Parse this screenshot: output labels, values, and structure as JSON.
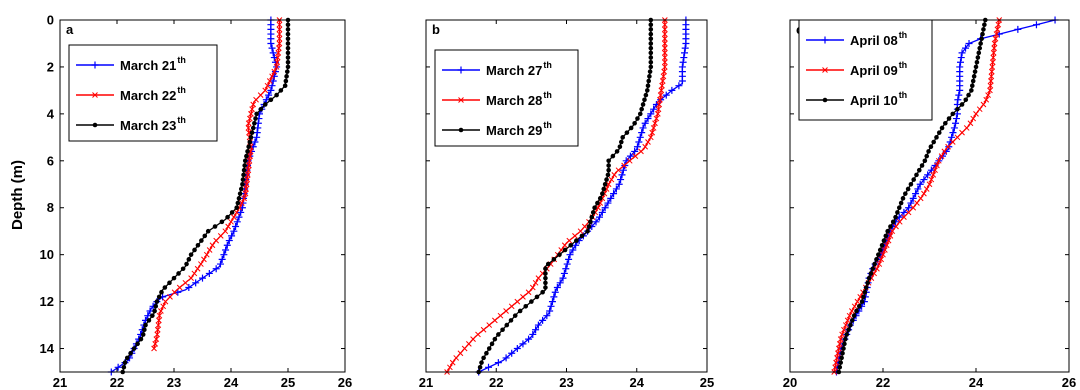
{
  "chart_data": [
    {
      "type": "line",
      "panel_label": "a",
      "xlabel": "",
      "ylabel": "Depth (m)",
      "xlim": [
        21,
        26
      ],
      "ylim": [
        0,
        15
      ],
      "y_reversed": true,
      "xticks": [
        "21",
        "22",
        "23",
        "24",
        "25",
        "26"
      ],
      "yticks": [
        "0",
        "2",
        "4",
        "6",
        "8",
        "10",
        "12",
        "14"
      ],
      "legend": "top-left",
      "series": [
        {
          "name": "March 21",
          "name_sup": "th",
          "color": "#0000ff",
          "marker": "plus",
          "points": [
            [
              24.7,
              0
            ],
            [
              24.7,
              1
            ],
            [
              24.8,
              2
            ],
            [
              24.7,
              3
            ],
            [
              24.6,
              3.5
            ],
            [
              24.5,
              4
            ],
            [
              24.45,
              5
            ],
            [
              24.3,
              6
            ],
            [
              24.25,
              7
            ],
            [
              24.2,
              8
            ],
            [
              24.05,
              9
            ],
            [
              23.95,
              9.5
            ],
            [
              23.8,
              10.5
            ],
            [
              23.5,
              11
            ],
            [
              23.2,
              11.5
            ],
            [
              22.8,
              11.8
            ],
            [
              22.7,
              12
            ],
            [
              22.6,
              12.3
            ],
            [
              22.5,
              12.8
            ],
            [
              22.4,
              13.5
            ],
            [
              22.3,
              14
            ],
            [
              22.2,
              14.5
            ],
            [
              21.9,
              15
            ]
          ]
        },
        {
          "name": "March 22",
          "name_sup": "th",
          "color": "#ff0000",
          "marker": "x",
          "points": [
            [
              24.85,
              0
            ],
            [
              24.85,
              1
            ],
            [
              24.8,
              2
            ],
            [
              24.6,
              3
            ],
            [
              24.4,
              3.5
            ],
            [
              24.35,
              4
            ],
            [
              24.3,
              4.5
            ],
            [
              24.35,
              5.5
            ],
            [
              24.3,
              6.5
            ],
            [
              24.25,
              7.5
            ],
            [
              24.15,
              8
            ],
            [
              23.9,
              9
            ],
            [
              23.7,
              9.5
            ],
            [
              23.5,
              10.3
            ],
            [
              23.3,
              11
            ],
            [
              23.05,
              11.5
            ],
            [
              22.85,
              12
            ],
            [
              22.75,
              12.5
            ],
            [
              22.7,
              13.5
            ],
            [
              22.65,
              14
            ]
          ]
        },
        {
          "name": "March 23",
          "name_sup": "th",
          "color": "#000000",
          "marker": "dot",
          "points": [
            [
              25.0,
              0
            ],
            [
              25.0,
              1
            ],
            [
              25.0,
              2
            ],
            [
              24.95,
              2.8
            ],
            [
              24.8,
              3.2
            ],
            [
              24.6,
              3.6
            ],
            [
              24.45,
              4
            ],
            [
              24.35,
              5
            ],
            [
              24.25,
              6
            ],
            [
              24.2,
              7
            ],
            [
              24.1,
              8
            ],
            [
              23.9,
              8.5
            ],
            [
              23.6,
              9
            ],
            [
              23.3,
              10
            ],
            [
              23.2,
              10.5
            ],
            [
              23.0,
              11
            ],
            [
              22.8,
              11.5
            ],
            [
              22.7,
              12
            ],
            [
              22.65,
              12.5
            ],
            [
              22.5,
              13
            ],
            [
              22.45,
              13.5
            ],
            [
              22.3,
              14
            ],
            [
              22.15,
              14.5
            ],
            [
              22.1,
              15
            ]
          ]
        }
      ]
    },
    {
      "type": "line",
      "panel_label": "b",
      "xlabel": "",
      "ylabel": "",
      "xlim": [
        21,
        25
      ],
      "ylim": [
        0,
        15
      ],
      "y_reversed": true,
      "xticks": [
        "21",
        "22",
        "23",
        "24",
        "25"
      ],
      "yticks": [],
      "legend": "top-left",
      "series": [
        {
          "name": "March 27",
          "name_sup": "th",
          "color": "#0000ff",
          "marker": "plus",
          "points": [
            [
              24.7,
              0
            ],
            [
              24.7,
              1
            ],
            [
              24.65,
              2
            ],
            [
              24.65,
              2.7
            ],
            [
              24.5,
              3
            ],
            [
              24.3,
              3.5
            ],
            [
              24.2,
              4
            ],
            [
              24.1,
              4.5
            ],
            [
              24.0,
              5.5
            ],
            [
              23.85,
              6
            ],
            [
              23.75,
              7
            ],
            [
              23.55,
              8
            ],
            [
              23.45,
              8.5
            ],
            [
              23.3,
              9
            ],
            [
              23.15,
              9.5
            ],
            [
              23.05,
              10
            ],
            [
              23.0,
              10.5
            ],
            [
              22.95,
              11
            ],
            [
              22.85,
              11.5
            ],
            [
              22.8,
              12
            ],
            [
              22.75,
              12.5
            ],
            [
              22.6,
              13
            ],
            [
              22.5,
              13.5
            ],
            [
              22.3,
              14
            ],
            [
              22.1,
              14.5
            ],
            [
              21.75,
              15
            ]
          ]
        },
        {
          "name": "March 28",
          "name_sup": "th",
          "color": "#ff0000",
          "marker": "x",
          "points": [
            [
              24.4,
              0
            ],
            [
              24.4,
              1
            ],
            [
              24.4,
              2
            ],
            [
              24.35,
              3
            ],
            [
              24.3,
              4
            ],
            [
              24.25,
              4.5
            ],
            [
              24.2,
              5
            ],
            [
              24.1,
              5.5
            ],
            [
              23.9,
              6
            ],
            [
              23.7,
              6.5
            ],
            [
              23.6,
              7
            ],
            [
              23.45,
              8
            ],
            [
              23.35,
              8.5
            ],
            [
              23.2,
              9
            ],
            [
              23.0,
              9.5
            ],
            [
              22.75,
              10.5
            ],
            [
              22.6,
              11
            ],
            [
              22.5,
              11.5
            ],
            [
              22.3,
              12
            ],
            [
              22.1,
              12.5
            ],
            [
              21.9,
              13
            ],
            [
              21.7,
              13.5
            ],
            [
              21.55,
              14
            ],
            [
              21.4,
              14.5
            ],
            [
              21.3,
              15
            ]
          ]
        },
        {
          "name": "March 29",
          "name_sup": "th",
          "color": "#000000",
          "marker": "dot",
          "points": [
            [
              24.2,
              0
            ],
            [
              24.2,
              1
            ],
            [
              24.2,
              2
            ],
            [
              24.15,
              3
            ],
            [
              24.1,
              3.5
            ],
            [
              24.05,
              4
            ],
            [
              23.95,
              4.5
            ],
            [
              23.8,
              5
            ],
            [
              23.75,
              5.5
            ],
            [
              23.6,
              6
            ],
            [
              23.6,
              6.5
            ],
            [
              23.5,
              7.5
            ],
            [
              23.4,
              8
            ],
            [
              23.3,
              9
            ],
            [
              23.1,
              9.5
            ],
            [
              22.9,
              10
            ],
            [
              22.7,
              10.5
            ],
            [
              22.7,
              11
            ],
            [
              22.7,
              11.5
            ],
            [
              22.5,
              12
            ],
            [
              22.3,
              12.5
            ],
            [
              22.15,
              13
            ],
            [
              22.0,
              13.5
            ],
            [
              21.9,
              14
            ],
            [
              21.8,
              14.5
            ],
            [
              21.75,
              15
            ]
          ]
        }
      ]
    },
    {
      "type": "line",
      "panel_label": "c",
      "xlabel": "",
      "ylabel": "",
      "xlim": [
        20,
        26
      ],
      "ylim": [
        0,
        15
      ],
      "y_reversed": true,
      "xticks": [
        "20",
        "22",
        "24",
        "26"
      ],
      "yticks": [],
      "legend": "top-left",
      "series": [
        {
          "name": "April 08",
          "name_sup": "th",
          "color": "#0000ff",
          "marker": "plus",
          "points": [
            [
              25.7,
              0
            ],
            [
              25.3,
              0.2
            ],
            [
              24.9,
              0.4
            ],
            [
              24.5,
              0.6
            ],
            [
              24.1,
              0.8
            ],
            [
              23.85,
              1
            ],
            [
              23.7,
              1.4
            ],
            [
              23.65,
              2
            ],
            [
              23.65,
              3
            ],
            [
              23.6,
              3.5
            ],
            [
              23.6,
              4
            ],
            [
              23.55,
              4.5
            ],
            [
              23.4,
              5.5
            ],
            [
              23.2,
              6
            ],
            [
              23.0,
              6.5
            ],
            [
              22.8,
              7
            ],
            [
              22.55,
              8
            ],
            [
              22.3,
              8.5
            ],
            [
              22.15,
              9
            ],
            [
              21.95,
              10
            ],
            [
              21.8,
              10.5
            ],
            [
              21.7,
              11
            ],
            [
              21.6,
              12
            ],
            [
              21.45,
              12.5
            ],
            [
              21.3,
              13
            ],
            [
              21.2,
              13.5
            ],
            [
              21.1,
              14
            ],
            [
              21.05,
              14.5
            ],
            [
              21.0,
              15
            ]
          ]
        },
        {
          "name": "April 09",
          "name_sup": "th",
          "color": "#ff0000",
          "marker": "x",
          "points": [
            [
              24.5,
              0
            ],
            [
              24.45,
              0.5
            ],
            [
              24.4,
              1
            ],
            [
              24.35,
              2
            ],
            [
              24.3,
              3
            ],
            [
              24.2,
              3.5
            ],
            [
              24.0,
              4
            ],
            [
              23.85,
              4.5
            ],
            [
              23.6,
              5
            ],
            [
              23.35,
              5.5
            ],
            [
              23.2,
              6
            ],
            [
              23.0,
              7
            ],
            [
              22.85,
              7.5
            ],
            [
              22.65,
              8
            ],
            [
              22.4,
              8.5
            ],
            [
              22.2,
              9
            ],
            [
              22.0,
              10
            ],
            [
              21.9,
              10.5
            ],
            [
              21.75,
              11
            ],
            [
              21.6,
              11.5
            ],
            [
              21.45,
              12
            ],
            [
              21.3,
              12.5
            ],
            [
              21.2,
              13
            ],
            [
              21.1,
              13.5
            ],
            [
              21.05,
              14
            ],
            [
              21.0,
              14.5
            ],
            [
              20.95,
              15
            ]
          ]
        },
        {
          "name": "April 10",
          "name_sup": "th",
          "color": "#000000",
          "marker": "dot",
          "points": [
            [
              24.2,
              0
            ],
            [
              24.15,
              0.5
            ],
            [
              24.1,
              1
            ],
            [
              24.0,
              2
            ],
            [
              23.9,
              3
            ],
            [
              23.75,
              3.5
            ],
            [
              23.5,
              4
            ],
            [
              23.3,
              4.5
            ],
            [
              23.15,
              5
            ],
            [
              23.0,
              5.5
            ],
            [
              22.9,
              6
            ],
            [
              22.75,
              6.5
            ],
            [
              22.6,
              7
            ],
            [
              22.45,
              7.5
            ],
            [
              22.35,
              8
            ],
            [
              22.25,
              8.5
            ],
            [
              22.1,
              9
            ],
            [
              22.0,
              9.5
            ],
            [
              21.9,
              10
            ],
            [
              21.8,
              10.5
            ],
            [
              21.7,
              11
            ],
            [
              21.55,
              12
            ],
            [
              21.4,
              12.5
            ],
            [
              21.3,
              13
            ],
            [
              21.2,
              13.5
            ],
            [
              21.15,
              14
            ],
            [
              21.1,
              14.5
            ],
            [
              21.05,
              15
            ]
          ]
        }
      ]
    }
  ]
}
